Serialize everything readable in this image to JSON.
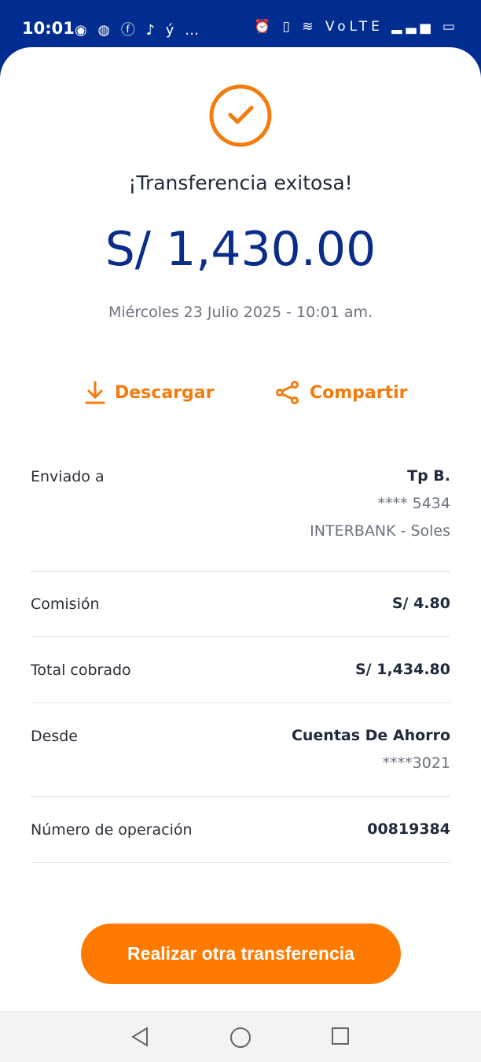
{
  "status_bar": {
    "time": "10:01",
    "notification_icons": "◉ ◍ ⓕ ♪ ý …",
    "system_icons": "⏰ ▯ ≋ VoLTE ▂▃▅ ▭"
  },
  "success": {
    "title": "¡Transferencia exitosa!",
    "amount": "S/ 1,430.00",
    "date": "Miércoles 23 Julio 2025 - 10:01 am."
  },
  "actions": {
    "download": "Descargar",
    "share": "Compartir"
  },
  "details": {
    "sent_to": {
      "label": "Enviado a",
      "name": "Tp B.",
      "account": "**** 5434",
      "bank": "INTERBANK - Soles"
    },
    "commission": {
      "label": "Comisión",
      "value": "S/ 4.80"
    },
    "total": {
      "label": "Total cobrado",
      "value": "S/ 1,434.80"
    },
    "from": {
      "label": "Desde",
      "account_type": "Cuentas De Ahorro",
      "account": "****3021"
    },
    "operation": {
      "label": "Número de operación",
      "value": "00819384"
    }
  },
  "cta": "Realizar otra transferencia",
  "colors": {
    "accent": "#ff7a00",
    "primary": "#0a2d8a",
    "header": "#002d8f"
  }
}
